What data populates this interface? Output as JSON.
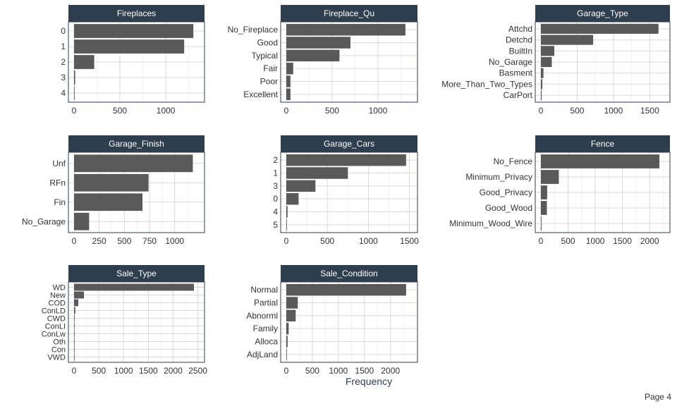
{
  "page_label": "Page 4",
  "x_axis_label": "Frequency",
  "colors": {
    "strip": "#2f3e4e",
    "strip_text": "#ffffff",
    "bar": "#595959",
    "grid": "#d9d9d9",
    "frame": "#2f3e4e",
    "tick_text": "#333333"
  },
  "chart_data": [
    {
      "type": "bar",
      "orientation": "horizontal",
      "title": "Fireplaces",
      "categories": [
        "0",
        "1",
        "2",
        "3",
        "4"
      ],
      "values": [
        1300,
        1200,
        220,
        12,
        1
      ],
      "xlim": [
        0,
        1360
      ],
      "xticks": [
        0,
        500,
        1000
      ],
      "grid": true
    },
    {
      "type": "bar",
      "orientation": "horizontal",
      "title": "Fireplace_Qu",
      "categories": [
        "No_Fireplace",
        "Good",
        "Typical",
        "Fair",
        "Poor",
        "Excellent"
      ],
      "values": [
        1300,
        700,
        580,
        75,
        45,
        45
      ],
      "xlim": [
        0,
        1370
      ],
      "xticks": [
        0,
        500,
        1000
      ],
      "grid": true
    },
    {
      "type": "bar",
      "orientation": "horizontal",
      "title": "Garage_Type",
      "categories": [
        "Attchd",
        "Detchd",
        "BuiltIn",
        "No_Garage",
        "Basment",
        "More_Than_Two_Types",
        "CarPort"
      ],
      "values": [
        1620,
        720,
        185,
        150,
        35,
        20,
        10
      ],
      "xlim": [
        0,
        1700
      ],
      "xticks": [
        0,
        500,
        1000,
        1500
      ],
      "grid": true
    },
    {
      "type": "bar",
      "orientation": "horizontal",
      "title": "Garage_Finish",
      "categories": [
        "Unf",
        "RFn",
        "Fin",
        "No_Garage"
      ],
      "values": [
        1180,
        740,
        680,
        150
      ],
      "xlim": [
        0,
        1240
      ],
      "xticks": [
        0,
        250,
        500,
        750,
        1000
      ],
      "grid": true
    },
    {
      "type": "bar",
      "orientation": "horizontal",
      "title": "Garage_Cars",
      "categories": [
        "2",
        "1",
        "3",
        "0",
        "4",
        "5"
      ],
      "values": [
        1460,
        750,
        355,
        150,
        15,
        1
      ],
      "xlim": [
        0,
        1530
      ],
      "xticks": [
        0,
        500,
        1000,
        1500
      ],
      "grid": true
    },
    {
      "type": "bar",
      "orientation": "horizontal",
      "title": "Fence",
      "categories": [
        "No_Fence",
        "Minimum_Privacy",
        "Good_Privacy",
        "Good_Wood",
        "Minimum_Wood_Wire"
      ],
      "values": [
        2180,
        330,
        115,
        110,
        12
      ],
      "xlim": [
        0,
        2270
      ],
      "xticks": [
        0,
        500,
        1000,
        1500,
        2000
      ],
      "grid": true
    },
    {
      "type": "bar",
      "orientation": "horizontal",
      "title": "Sale_Type",
      "categories": [
        "WD",
        "New",
        "COD",
        "ConLD",
        "CWD",
        "ConLI",
        "ConLw",
        "Oth",
        "Con",
        "VWD"
      ],
      "values": [
        2420,
        200,
        85,
        25,
        12,
        8,
        8,
        7,
        4,
        1
      ],
      "xlim": [
        0,
        2520
      ],
      "xticks": [
        0,
        500,
        1000,
        1500,
        2000,
        2500
      ],
      "grid": true
    },
    {
      "type": "bar",
      "orientation": "horizontal",
      "title": "Sale_Condition",
      "categories": [
        "Normal",
        "Partial",
        "Abnorml",
        "Family",
        "Alloca",
        "AdjLand"
      ],
      "values": [
        2300,
        220,
        180,
        45,
        25,
        10
      ],
      "xlim": [
        0,
        2410
      ],
      "xticks": [
        0,
        500,
        1000,
        1500,
        2000
      ],
      "grid": true
    }
  ]
}
